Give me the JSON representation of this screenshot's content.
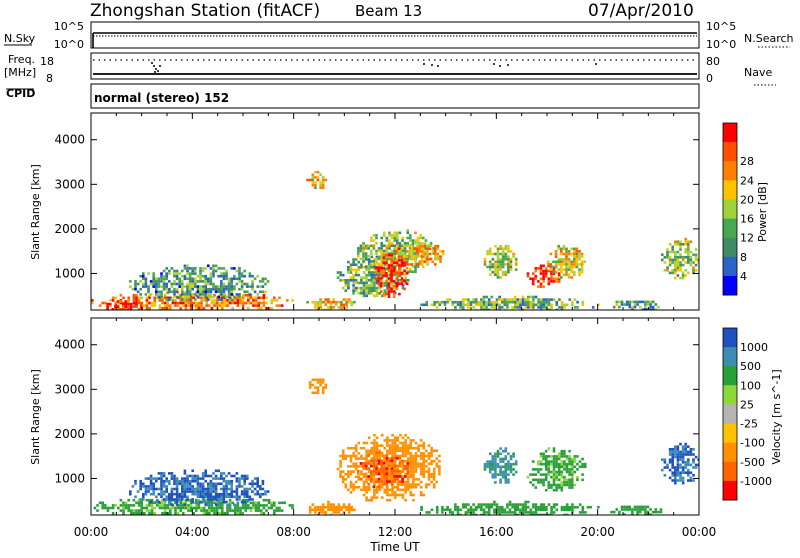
{
  "header": {
    "station": "Zhongshan Station (fitACF)",
    "beam": "Beam 13",
    "date": "07/Apr/2010"
  },
  "top_panels": {
    "nsky_label": "N.Sky",
    "nsky_ticks": [
      "10^5",
      "10^0"
    ],
    "nsearch_label": "N.Search",
    "nsearch_ticks": [
      "10^5",
      "10^0"
    ],
    "freq_label": "Freq.",
    "freq_unit": "[MHz]",
    "freq_ticks": [
      "18",
      "8"
    ],
    "nave_label": "Nave",
    "nave_ticks": [
      "80",
      "0"
    ],
    "cpid_label": "CPID",
    "cpid_value": "normal (stereo) 152"
  },
  "colors": {
    "power_scale": [
      "#0000ff",
      "#2a64c8",
      "#3f8c64",
      "#48a850",
      "#9fd438",
      "#ffc000",
      "#ff8000",
      "#ff5000",
      "#ff0000"
    ],
    "velocity_scale": [
      "#2050c0",
      "#3c8cb4",
      "#28a038",
      "#8cd838",
      "#b4b4b4",
      "#ffc000",
      "#ff9000",
      "#ff6400",
      "#ff0000"
    ],
    "nsky_line": "#000000",
    "nsearch_line": "#000000"
  },
  "chart_data": [
    {
      "type": "heatmap",
      "name": "power",
      "xlabel": "Time UT",
      "ylabel": "Slant Range [km]",
      "x_ticks": [
        "00:00",
        "04:00",
        "08:00",
        "12:00",
        "16:00",
        "20:00",
        "00:00"
      ],
      "xlim": [
        0,
        24
      ],
      "ylim": [
        180,
        4600
      ],
      "y_ticks": [
        1000,
        2000,
        3000,
        4000
      ],
      "colorbar_label": "Power [dB]",
      "colorbar_ticks": [
        "4",
        "8",
        "12",
        "16",
        "20",
        "24",
        "28"
      ],
      "colorbar_range": [
        0,
        30
      ],
      "grid": false,
      "regions": [
        {
          "x": [
            0.0,
            8.0
          ],
          "y": [
            180,
            600
          ],
          "value": 22
        },
        {
          "x": [
            1.5,
            7.0
          ],
          "y": [
            400,
            1200
          ],
          "value": 10
        },
        {
          "x": [
            0.5,
            2.0
          ],
          "y": [
            180,
            400
          ],
          "value": 28
        },
        {
          "x": [
            8.5,
            10.5
          ],
          "y": [
            180,
            500
          ],
          "value": 18
        },
        {
          "x": [
            9.7,
            12.5
          ],
          "y": [
            500,
            1400
          ],
          "value": 12
        },
        {
          "x": [
            10.5,
            13.5
          ],
          "y": [
            1000,
            2000
          ],
          "value": 14
        },
        {
          "x": [
            11.2,
            12.5
          ],
          "y": [
            500,
            1500
          ],
          "value": 28
        },
        {
          "x": [
            12.0,
            14.0
          ],
          "y": [
            1200,
            1700
          ],
          "value": 20
        },
        {
          "x": [
            13.0,
            20.0
          ],
          "y": [
            180,
            500
          ],
          "value": 12
        },
        {
          "x": [
            15.5,
            16.8
          ],
          "y": [
            900,
            1700
          ],
          "value": 14
        },
        {
          "x": [
            17.2,
            18.5
          ],
          "y": [
            700,
            1200
          ],
          "value": 28
        },
        {
          "x": [
            18.0,
            19.5
          ],
          "y": [
            900,
            1700
          ],
          "value": 18
        },
        {
          "x": [
            20.5,
            22.5
          ],
          "y": [
            180,
            450
          ],
          "value": 10
        },
        {
          "x": [
            22.5,
            24.0
          ],
          "y": [
            900,
            1800
          ],
          "value": 14
        },
        {
          "x": [
            8.5,
            9.3
          ],
          "y": [
            2900,
            3300
          ],
          "value": 18
        }
      ]
    },
    {
      "type": "heatmap",
      "name": "velocity",
      "xlabel": "Time UT",
      "ylabel": "Slant Range [km]",
      "x_ticks": [
        "00:00",
        "04:00",
        "08:00",
        "12:00",
        "16:00",
        "20:00",
        "00:00"
      ],
      "xlim": [
        0,
        24
      ],
      "ylim": [
        180,
        4600
      ],
      "y_ticks": [
        1000,
        2000,
        3000,
        4000
      ],
      "colorbar_label": "Velocity [m s^-1]",
      "colorbar_ticks": [
        "1000",
        "500",
        "100",
        "25",
        "-25",
        "-100",
        "-500",
        "-1000"
      ],
      "colorbar_range": [
        -1000,
        1000
      ],
      "grid": false,
      "regions": [
        {
          "x": [
            0.0,
            8.0
          ],
          "y": [
            180,
            600
          ],
          "value": 100
        },
        {
          "x": [
            1.5,
            7.0
          ],
          "y": [
            400,
            1200
          ],
          "value": 900
        },
        {
          "x": [
            8.5,
            10.5
          ],
          "y": [
            180,
            500
          ],
          "value": -300
        },
        {
          "x": [
            9.7,
            13.8
          ],
          "y": [
            500,
            2000
          ],
          "value": -300
        },
        {
          "x": [
            10.5,
            12.5
          ],
          "y": [
            800,
            1600
          ],
          "value": -700
        },
        {
          "x": [
            13.0,
            20.0
          ],
          "y": [
            180,
            500
          ],
          "value": 200
        },
        {
          "x": [
            15.5,
            16.8
          ],
          "y": [
            900,
            1700
          ],
          "value": 400
        },
        {
          "x": [
            17.2,
            19.5
          ],
          "y": [
            700,
            1700
          ],
          "value": 100
        },
        {
          "x": [
            20.5,
            22.5
          ],
          "y": [
            180,
            450
          ],
          "value": 200
        },
        {
          "x": [
            22.5,
            24.0
          ],
          "y": [
            900,
            1800
          ],
          "value": 900
        },
        {
          "x": [
            8.5,
            9.3
          ],
          "y": [
            2900,
            3300
          ],
          "value": -300
        }
      ]
    }
  ]
}
